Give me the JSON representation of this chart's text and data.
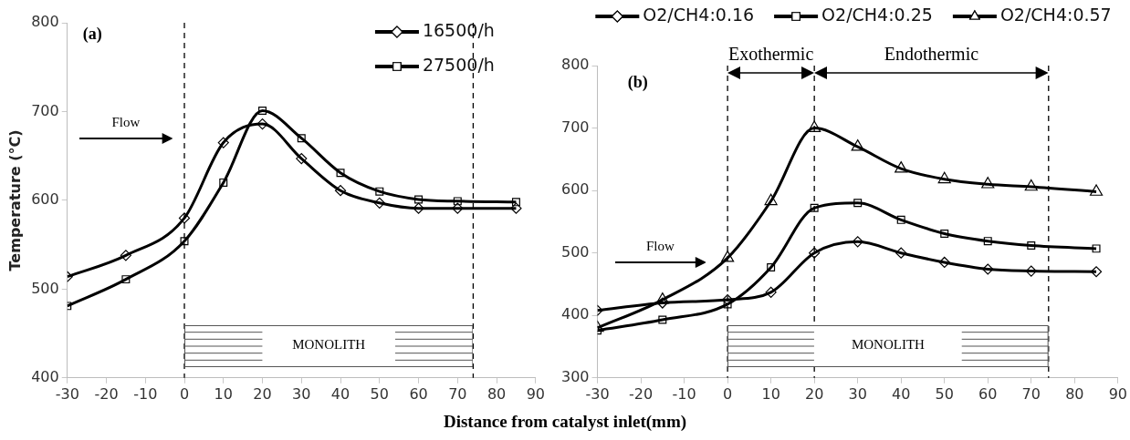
{
  "chart_data": [
    {
      "type": "line",
      "xlabel": "Distance from catalyst inlet(mm)",
      "ylabel": "Temperature (°C)",
      "x": [
        -30,
        -15,
        0,
        10,
        20,
        30,
        40,
        50,
        60,
        70,
        85
      ],
      "series": [
        {
          "name": "16500/h",
          "color": "#000000",
          "marker": "diamond",
          "values": [
            514,
            538,
            580,
            665,
            686,
            647,
            611,
            597,
            591,
            591,
            591
          ]
        },
        {
          "name": "27500/h",
          "color": "#000000",
          "marker": "square",
          "values": [
            481,
            511,
            554,
            620,
            701,
            670,
            631,
            610,
            601,
            599,
            598
          ]
        }
      ],
      "xlim": [
        -30,
        90
      ],
      "xticks": [
        -30,
        -20,
        -10,
        0,
        10,
        20,
        30,
        40,
        50,
        60,
        70,
        80,
        90
      ],
      "ylim": [
        400,
        800
      ],
      "yticks": [
        400,
        500,
        600,
        700,
        800
      ],
      "ref_lines": [
        {
          "axis": "x",
          "value": 0,
          "color": "#000000",
          "line_style": "dashed"
        },
        {
          "axis": "x",
          "value": 74,
          "color": "#000000",
          "line_style": "dashed"
        }
      ],
      "annotations": [
        "(a)",
        "Flow",
        "MONOLITH"
      ],
      "legend": "top right",
      "grid": false,
      "line_style": "solid"
    },
    {
      "type": "line",
      "x": [
        -30,
        -15,
        0,
        10,
        20,
        30,
        40,
        50,
        60,
        70,
        85
      ],
      "series": [
        {
          "name": "O2/CH4:0.16",
          "color": "#000000",
          "marker": "diamond",
          "values": [
            408,
            420,
            425,
            437,
            500,
            518,
            500,
            485,
            474,
            471,
            470
          ]
        },
        {
          "name": "O2/CH4:0.25",
          "color": "#000000",
          "marker": "square",
          "values": [
            376,
            393,
            418,
            477,
            572,
            580,
            553,
            531,
            519,
            512,
            507
          ]
        },
        {
          "name": "O2/CH4:0.57",
          "color": "#000000",
          "marker": "triangle",
          "values": [
            380,
            425,
            492,
            583,
            700,
            670,
            635,
            618,
            610,
            606,
            598
          ]
        }
      ],
      "xlim": [
        -30,
        90
      ],
      "xticks": [
        -30,
        -20,
        -10,
        0,
        10,
        20,
        30,
        40,
        50,
        60,
        70,
        80,
        90
      ],
      "ylim": [
        300,
        800
      ],
      "yticks": [
        300,
        400,
        500,
        600,
        700,
        800
      ],
      "ref_lines": [
        {
          "axis": "x",
          "value": 0,
          "color": "#000000",
          "line_style": "dashed"
        },
        {
          "axis": "x",
          "value": 20,
          "color": "#000000",
          "line_style": "dashed"
        },
        {
          "axis": "x",
          "value": 74,
          "color": "#000000",
          "line_style": "dashed"
        }
      ],
      "annotations": [
        "(b)",
        "Exothermic",
        "Endothermic",
        "Flow",
        "MONOLITH"
      ],
      "legend": "top",
      "grid": false,
      "line_style": "solid"
    }
  ]
}
